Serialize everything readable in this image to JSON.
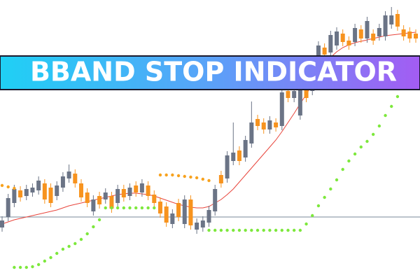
{
  "chart_data": {
    "type": "candlestick",
    "title": "BBAND STOP INDICATOR",
    "ylim": [
      0,
      400
    ],
    "candles": {
      "open": [
        75,
        90,
        110,
        128,
        120,
        125,
        128,
        138,
        132,
        120,
        132,
        145,
        152,
        138,
        125,
        98,
        120,
        115,
        120,
        110,
        130,
        120,
        135,
        125,
        135,
        122,
        112,
        105,
        80,
        110,
        80,
        115,
        72,
        75,
        82,
        98,
        150,
        145,
        170,
        185,
        175,
        195,
        230,
        225,
        215,
        225,
        220,
        270,
        260,
        235,
        272,
        270,
        320,
        332,
        325,
        335,
        352,
        342,
        340,
        358,
        345,
        352,
        348,
        348,
        365,
        380,
        358,
        355,
        352
      ],
      "high": [
        91,
        123,
        136,
        134,
        136,
        138,
        148,
        144,
        138,
        141,
        154,
        165,
        158,
        144,
        131,
        121,
        126,
        131,
        126,
        136,
        136,
        138,
        141,
        144,
        141,
        128,
        118,
        111,
        101,
        116,
        121,
        121,
        88,
        91,
        106,
        136,
        156,
        184,
        225,
        191,
        206,
        255,
        236,
        231,
        234,
        231,
        274,
        276,
        276,
        278,
        278,
        281,
        341,
        338,
        356,
        361,
        358,
        348,
        366,
        364,
        376,
        358,
        366,
        384,
        390,
        386,
        364,
        361,
        358
      ],
      "low": [
        69,
        84,
        104,
        112,
        114,
        119,
        122,
        109,
        104,
        114,
        126,
        139,
        132,
        112,
        104,
        92,
        102,
        109,
        96,
        104,
        112,
        114,
        119,
        119,
        114,
        104,
        89,
        76,
        74,
        84,
        74,
        72,
        66,
        69,
        76,
        92,
        132,
        139,
        164,
        164,
        169,
        189,
        214,
        209,
        209,
        212,
        214,
        254,
        254,
        229,
        254,
        264,
        314,
        316,
        319,
        329,
        334,
        329,
        334,
        339,
        339,
        336,
        342,
        342,
        359,
        356,
        342,
        339,
        339
      ],
      "close": [
        85,
        117,
        130,
        118,
        130,
        132,
        142,
        115,
        110,
        135,
        148,
        155,
        138,
        118,
        110,
        115,
        108,
        125,
        102,
        130,
        118,
        132,
        125,
        138,
        120,
        110,
        95,
        82,
        95,
        90,
        115,
        78,
        82,
        85,
        100,
        130,
        138,
        178,
        182,
        170,
        200,
        225,
        220,
        215,
        228,
        218,
        268,
        260,
        270,
        272,
        260,
        275,
        335,
        322,
        350,
        355,
        340,
        335,
        360,
        345,
        370,
        342,
        360,
        378,
        378,
        362,
        348,
        345,
        345
      ],
      "up_color": "#6b7486",
      "down_color": "#f7931e"
    },
    "lines": [
      {
        "color": "#e8453c",
        "style": "line",
        "values": [
          80,
          83,
          86,
          88,
          90,
          92,
          94,
          96,
          98,
          100,
          103,
          106,
          108,
          110,
          112,
          114,
          116,
          118,
          120,
          122,
          123,
          124,
          124,
          123,
          122,
          120,
          117,
          114,
          111,
          108,
          106,
          104,
          103,
          103,
          105,
          110,
          115,
          122,
          130,
          140,
          150,
          160,
          170,
          180,
          190,
          200,
          212,
          225,
          238,
          252,
          265,
          280,
          295,
          308,
          318,
          326,
          332,
          336,
          339,
          341,
          343,
          345,
          347,
          349,
          350,
          351,
          352,
          353,
          354
        ]
      },
      {
        "color": "#7de83c",
        "style": "dots",
        "values": [
          null,
          null,
          18,
          18,
          18,
          19,
          22,
          27,
          32,
          38,
          44,
          48,
          52,
          58,
          66,
          76,
          86,
          103,
          103,
          103,
          103,
          103,
          103,
          103,
          103,
          103,
          null,
          null,
          null,
          null,
          null,
          null,
          null,
          null,
          71,
          71,
          71,
          71,
          71,
          71,
          71,
          71,
          71,
          71,
          71,
          71,
          71,
          71,
          71,
          71,
          80,
          92,
          106,
          118,
          130,
          143,
          158,
          170,
          180,
          190,
          198,
          208,
          220,
          235,
          248,
          262,
          275,
          null,
          null
        ]
      },
      {
        "color": "#f7a21e",
        "style": "dots",
        "values": [
          135,
          133,
          131,
          null,
          null,
          null,
          null,
          null,
          null,
          null,
          null,
          null,
          null,
          null,
          null,
          null,
          null,
          null,
          null,
          null,
          null,
          null,
          null,
          null,
          null,
          null,
          150,
          150,
          150,
          149,
          148,
          147,
          146,
          144,
          142,
          null,
          null,
          null,
          null,
          null,
          null,
          null,
          null,
          null,
          null,
          null,
          null,
          null,
          null,
          null,
          null,
          null,
          null,
          null,
          null,
          null,
          null,
          null,
          null,
          null,
          null,
          null,
          null,
          null,
          null,
          null,
          null,
          null,
          null
        ]
      }
    ],
    "reference_line": {
      "value": 90,
      "color": "#7a8a9a"
    }
  }
}
